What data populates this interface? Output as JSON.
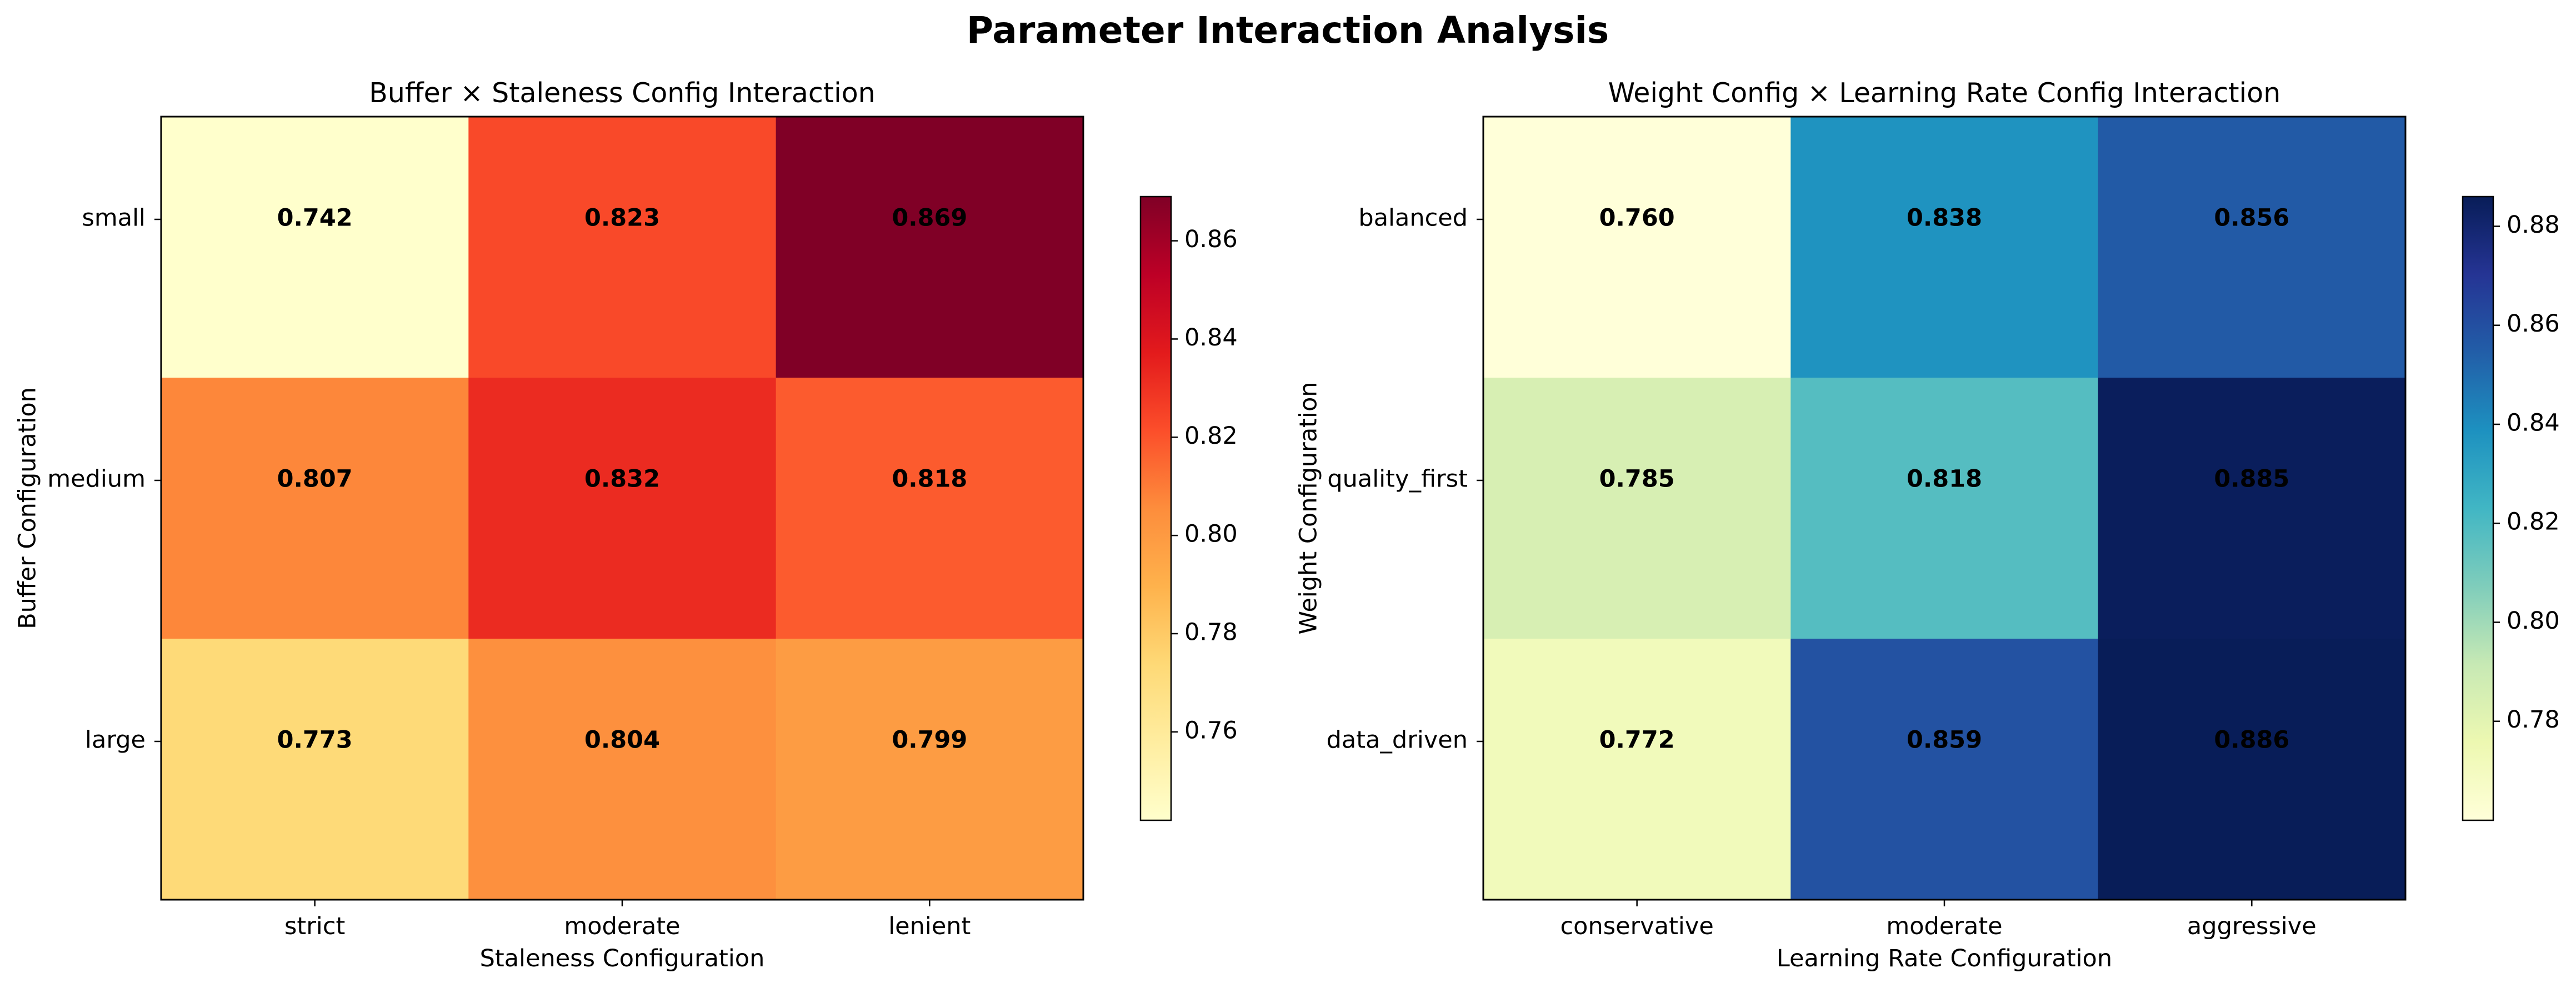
{
  "figure": {
    "title": "Parameter Interaction Analysis"
  },
  "chart_data": [
    {
      "type": "heatmap",
      "title": "Buffer × Staleness Config Interaction",
      "xlabel": "Staleness Configuration",
      "ylabel": "Buffer Configuration",
      "x_categories": [
        "strict",
        "moderate",
        "lenient"
      ],
      "y_categories": [
        "small",
        "medium",
        "large"
      ],
      "values": [
        [
          0.742,
          0.823,
          0.869
        ],
        [
          0.807,
          0.832,
          0.818
        ],
        [
          0.773,
          0.804,
          0.799
        ]
      ],
      "value_labels": [
        [
          "0.742",
          "0.823",
          "0.869"
        ],
        [
          "0.807",
          "0.832",
          "0.818"
        ],
        [
          "0.773",
          "0.804",
          "0.799"
        ]
      ],
      "colormap": "YlOrRd",
      "color_range": [
        0.742,
        0.869
      ],
      "colorbar_ticks": [
        "0.76",
        "0.78",
        "0.80",
        "0.82",
        "0.84",
        "0.86"
      ]
    },
    {
      "type": "heatmap",
      "title": "Weight Config × Learning Rate Config Interaction",
      "xlabel": "Learning Rate Configuration",
      "ylabel": "Weight Configuration",
      "x_categories": [
        "conservative",
        "moderate",
        "aggressive"
      ],
      "y_categories": [
        "balanced",
        "quality_first",
        "data_driven"
      ],
      "values": [
        [
          0.76,
          0.838,
          0.856
        ],
        [
          0.785,
          0.818,
          0.885
        ],
        [
          0.772,
          0.859,
          0.886
        ]
      ],
      "value_labels": [
        [
          "0.760",
          "0.838",
          "0.856"
        ],
        [
          "0.785",
          "0.818",
          "0.885"
        ],
        [
          "0.772",
          "0.859",
          "0.886"
        ]
      ],
      "colormap": "YlGnBu",
      "color_range": [
        0.76,
        0.886
      ],
      "colorbar_ticks": [
        "0.78",
        "0.80",
        "0.82",
        "0.84",
        "0.86",
        "0.88"
      ]
    }
  ]
}
